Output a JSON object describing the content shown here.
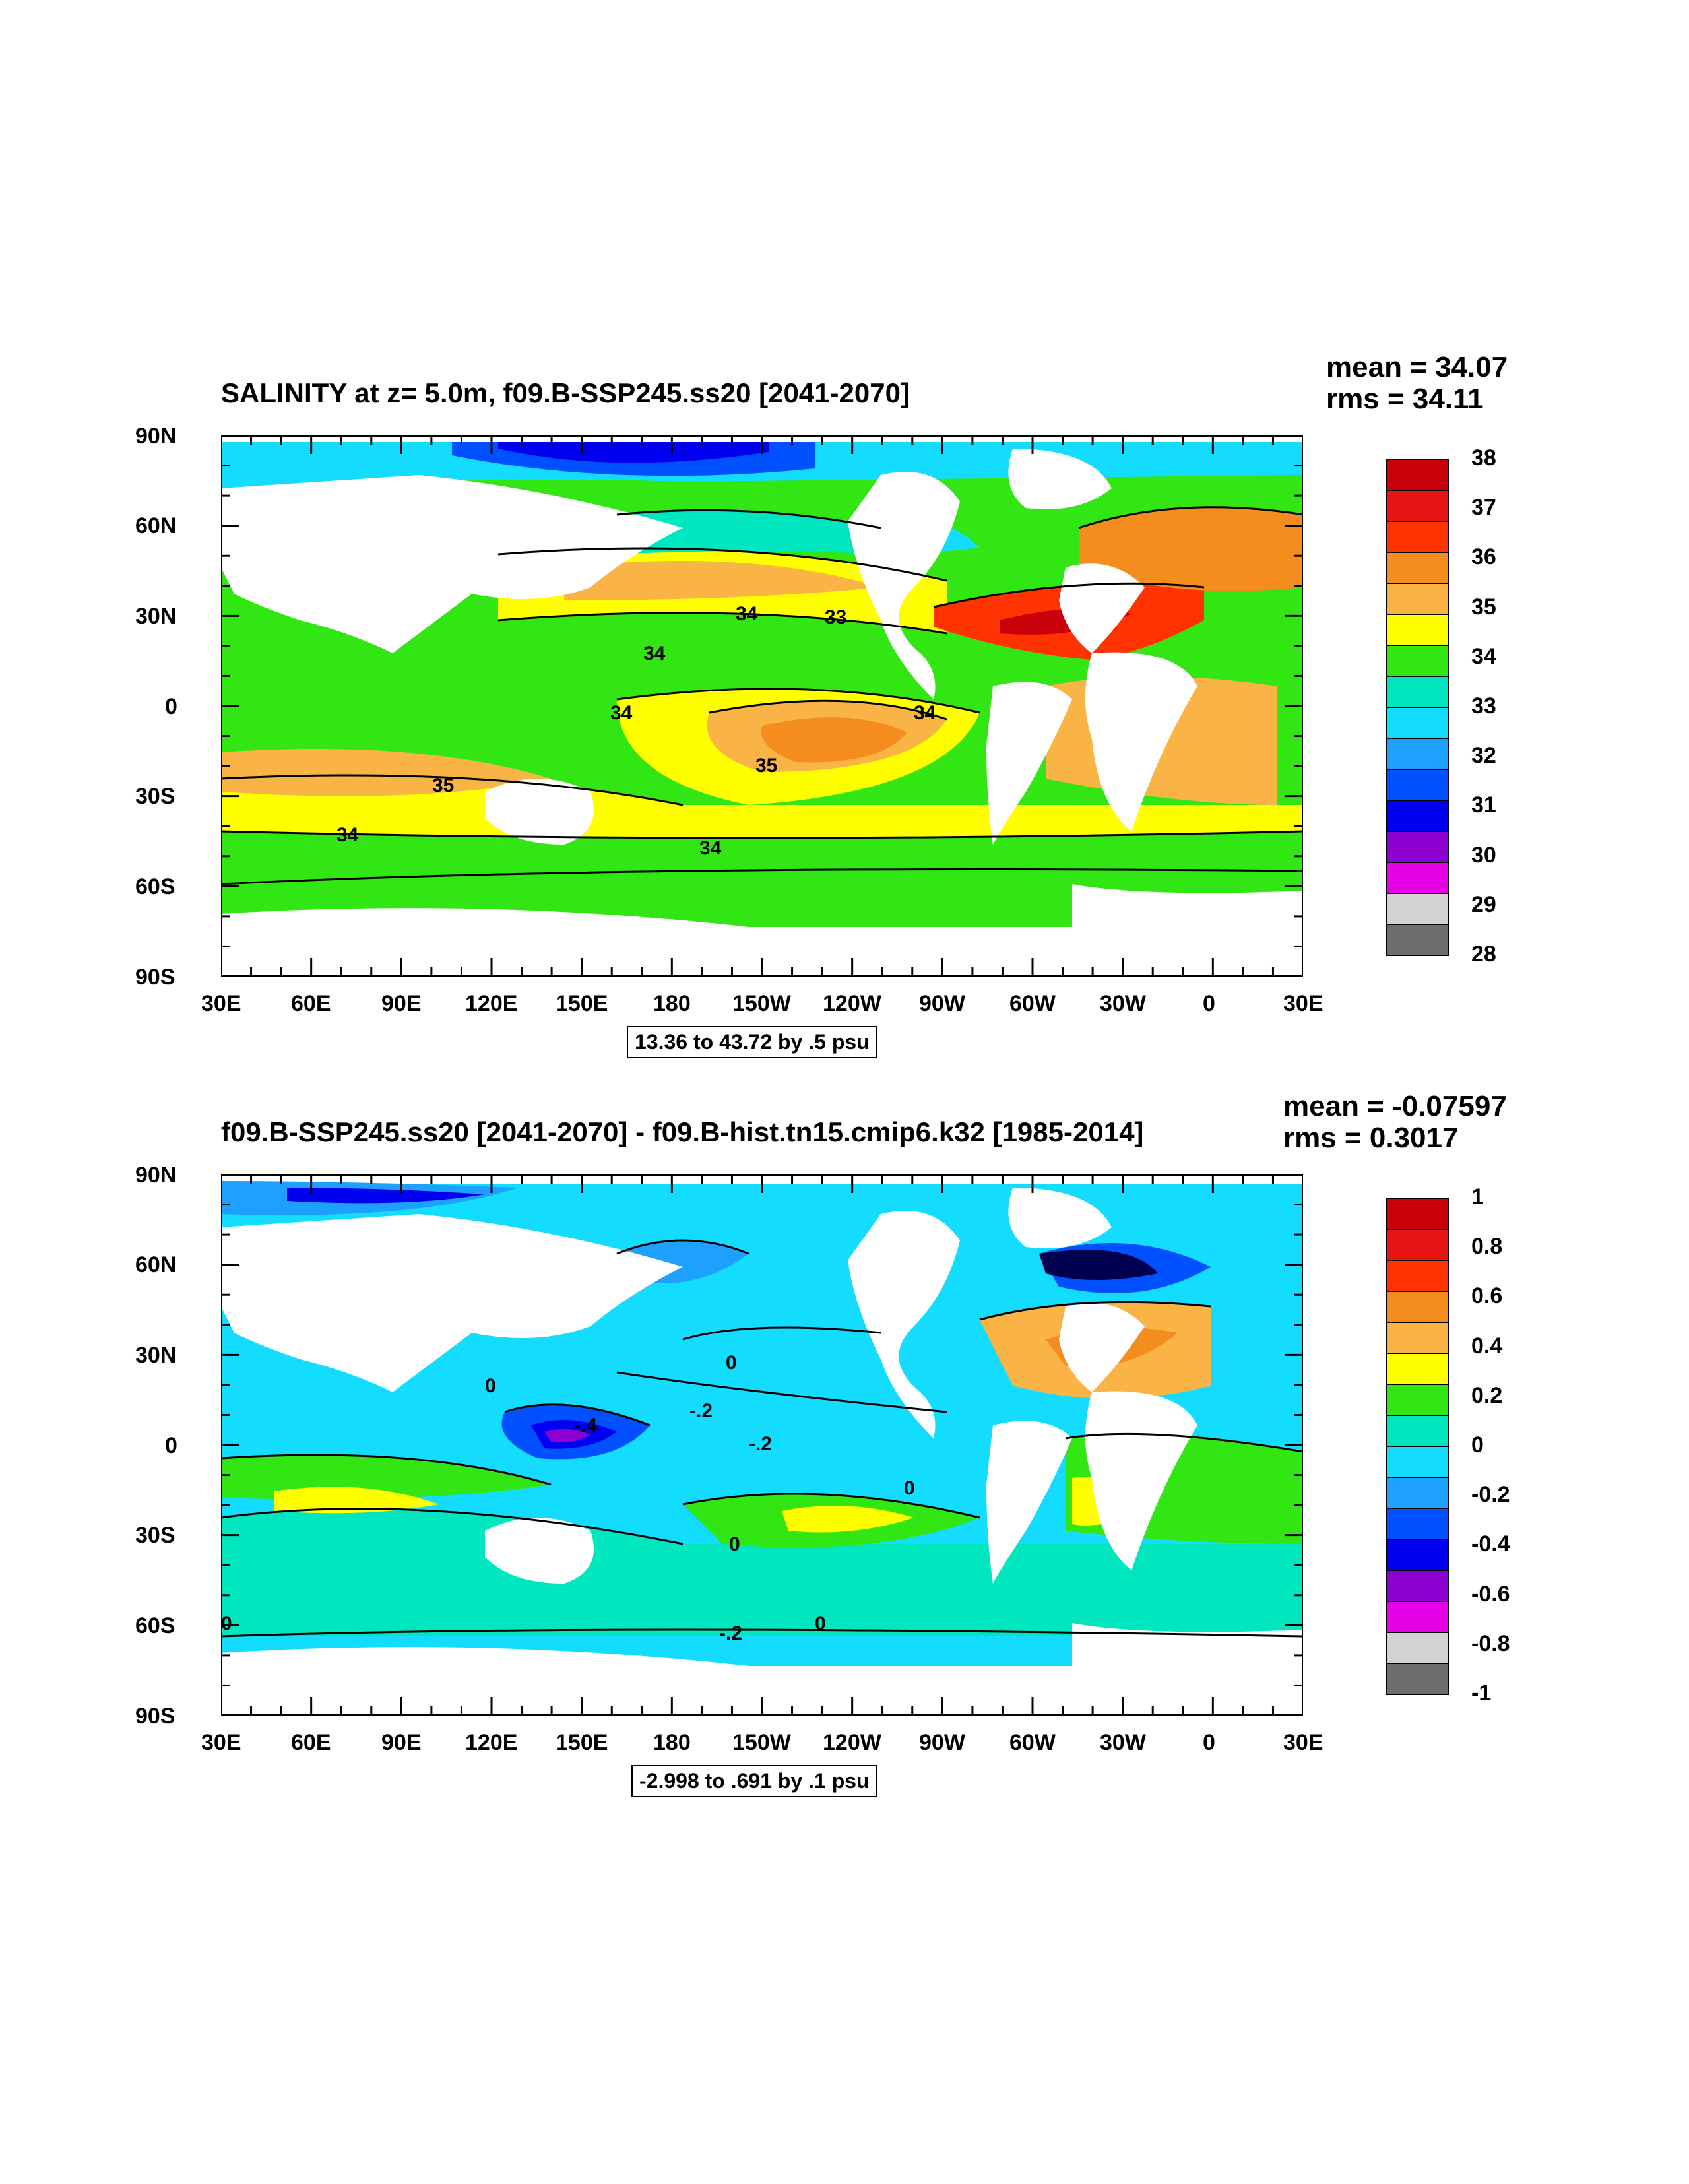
{
  "panels": [
    {
      "title": "SALINITY at z=   5.0m, f09.B-SSP245.ss20 [2041-2070]",
      "mean": "mean = 34.07",
      "rms": "rms = 34.11",
      "range_info": "13.36 to 43.72 by .5 psu",
      "colorbar": {
        "labels": [
          "38",
          "37",
          "36",
          "35",
          "34",
          "33",
          "32",
          "31",
          "30",
          "29",
          "28"
        ],
        "colors": [
          "#c8000a",
          "#e61414",
          "#ff3200",
          "#f58c1e",
          "#fab446",
          "#ffff00",
          "#32e614",
          "#00e6be",
          "#14dcff",
          "#1ea0ff",
          "#0050ff",
          "#0000f0",
          "#8c00d2",
          "#e600e6",
          "#d2d2d2",
          "#6e6e6e"
        ]
      },
      "contour_labels": [
        "34",
        "33",
        "34",
        "34",
        "34",
        "35",
        "35",
        "34",
        "34"
      ],
      "ocean_color": "#4be61e"
    },
    {
      "title": "f09.B-SSP245.ss20 [2041-2070] - f09.B-hist.tn15.cmip6.k32 [1985-2014]",
      "mean": "mean = -0.07597",
      "rms": "rms = 0.3017",
      "range_info": "-2.998 to .691 by .1 psu",
      "colorbar": {
        "labels": [
          "1",
          "0.8",
          "0.6",
          "0.4",
          "0.2",
          "0",
          "-0.2",
          "-0.4",
          "-0.6",
          "-0.8",
          "-1"
        ],
        "colors": [
          "#c8000a",
          "#e61414",
          "#ff3200",
          "#f58c1e",
          "#fab446",
          "#ffff00",
          "#32e614",
          "#00e6be",
          "#14dcff",
          "#1ea0ff",
          "#0050ff",
          "#0000f0",
          "#8c00d2",
          "#e600e6",
          "#d2d2d2",
          "#6e6e6e"
        ]
      },
      "contour_labels": [
        "0",
        "-.2",
        "-.4",
        "-.2",
        "0",
        "0",
        "0",
        "0",
        "-.2",
        "0"
      ],
      "ocean_color": "#20e8d8"
    }
  ],
  "axes": {
    "x_ticks": [
      "30E",
      "60E",
      "90E",
      "120E",
      "150E",
      "180",
      "150W",
      "120W",
      "90W",
      "60W",
      "30W",
      "0",
      "30E"
    ],
    "y_ticks": [
      "90N",
      "60N",
      "30N",
      "0",
      "30S",
      "60S",
      "90S"
    ]
  }
}
